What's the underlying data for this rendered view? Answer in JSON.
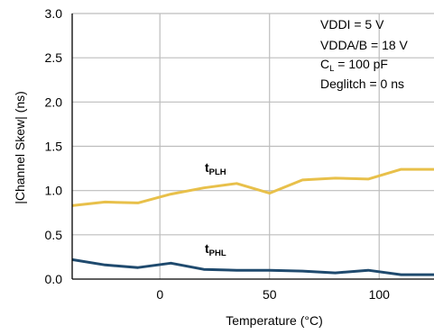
{
  "chart_data": {
    "type": "line",
    "title": "",
    "xlabel": "Temperature (°C)",
    "ylabel": "|Channel Skew| (ns)",
    "xlim": [
      -40,
      125
    ],
    "ylim": [
      0.0,
      3.0
    ],
    "xticks": [
      0,
      50,
      100
    ],
    "xtick_labels": [
      "0",
      "50",
      "100"
    ],
    "yticks": [
      0.0,
      0.5,
      1.0,
      1.5,
      2.0,
      2.5,
      3.0
    ],
    "ytick_labels": [
      "0.0",
      "0.5",
      "1.0",
      "1.5",
      "2.0",
      "2.5",
      "3.0"
    ],
    "grid": true,
    "series": [
      {
        "name": "PLH",
        "label_main": "t",
        "label_sub": "PLH",
        "color": "#e8c04a",
        "x": [
          -40,
          -25,
          -10,
          5,
          20,
          35,
          50,
          65,
          80,
          95,
          110,
          125
        ],
        "y": [
          0.83,
          0.87,
          0.86,
          0.96,
          1.03,
          1.08,
          0.97,
          1.12,
          1.14,
          1.13,
          1.24,
          1.24
        ]
      },
      {
        "name": "PHL",
        "label_main": "t",
        "label_sub": "PHL",
        "color": "#1f4a6e",
        "x": [
          -40,
          -25,
          -10,
          5,
          20,
          35,
          50,
          65,
          80,
          95,
          110,
          125
        ],
        "y": [
          0.22,
          0.16,
          0.13,
          0.18,
          0.11,
          0.1,
          0.1,
          0.09,
          0.07,
          0.1,
          0.05,
          0.05
        ]
      }
    ],
    "annotations": {
      "line1": "VDDI = 5 V",
      "line2": "VDDA/B = 18 V",
      "line3_main": "C",
      "line3_sub": "L",
      "line3_rest": " = 100 pF",
      "line4": "Deglitch = 0 ns"
    }
  }
}
